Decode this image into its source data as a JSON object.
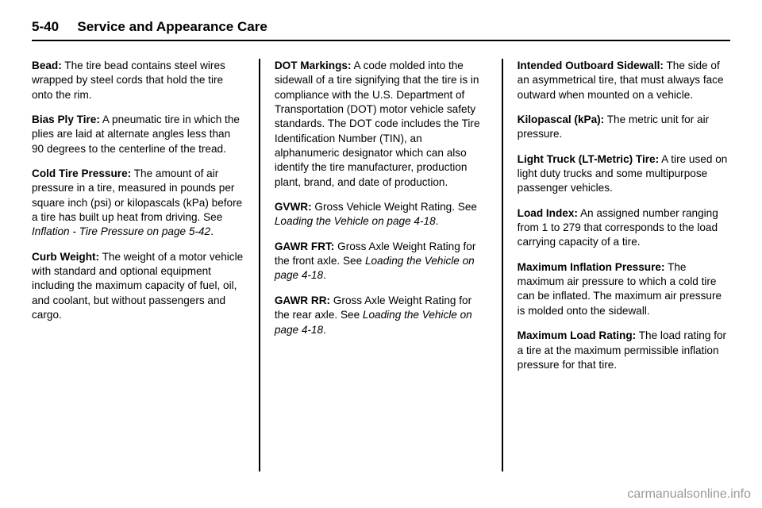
{
  "header": {
    "page_num": "5-40",
    "section": "Service and Appearance Care"
  },
  "col1": {
    "e1": {
      "term": "Bead:",
      "text": " The tire bead contains steel wires wrapped by steel cords that hold the tire onto the rim."
    },
    "e2": {
      "term": "Bias Ply Tire:",
      "text": " A pneumatic tire in which the plies are laid at alternate angles less than 90 degrees to the centerline of the tread."
    },
    "e3": {
      "term": "Cold Tire Pressure:",
      "text": " The amount of air pressure in a tire, measured in pounds per square inch (psi) or kilopascals (kPa) before a tire has built up heat from driving. See ",
      "ref": "Inflation - Tire Pressure on page 5-42",
      "after": "."
    },
    "e4": {
      "term": "Curb Weight:",
      "text": " The weight of a motor vehicle with standard and optional equipment including the maximum capacity of fuel, oil, and coolant, but without passengers and cargo."
    }
  },
  "col2": {
    "e1": {
      "term": "DOT Markings:",
      "text": " A code molded into the sidewall of a tire signifying that the tire is in compliance with the U.S. Department of Transportation (DOT) motor vehicle safety standards. The DOT code includes the Tire Identification Number (TIN), an alphanumeric designator which can also identify the tire manufacturer, production plant, brand, and date of production."
    },
    "e2": {
      "term": "GVWR:",
      "text": " Gross Vehicle Weight Rating. See ",
      "ref": "Loading the Vehicle on page 4-18",
      "after": "."
    },
    "e3": {
      "term": "GAWR FRT:",
      "text": " Gross Axle Weight Rating for the front axle. See ",
      "ref": "Loading the Vehicle on page 4-18",
      "after": "."
    },
    "e4": {
      "term": "GAWR RR:",
      "text": " Gross Axle Weight Rating for the rear axle. See ",
      "ref": "Loading the Vehicle on page 4-18",
      "after": "."
    }
  },
  "col3": {
    "e1": {
      "term": "Intended Outboard Sidewall:",
      "text": " The side of an asymmetrical tire, that must always face outward when mounted on a vehicle."
    },
    "e2": {
      "term": "Kilopascal (kPa):",
      "text": " The metric unit for air pressure."
    },
    "e3": {
      "term": "Light Truck (LT-Metric) Tire:",
      "text": " A tire used on light duty trucks and some multipurpose passenger vehicles."
    },
    "e4": {
      "term": "Load Index:",
      "text": " An assigned number ranging from 1 to 279 that corresponds to the load carrying capacity of a tire."
    },
    "e5": {
      "term": "Maximum Inflation Pressure:",
      "text": " The maximum air pressure to which a cold tire can be inflated. The maximum air pressure is molded onto the sidewall."
    },
    "e6": {
      "term": "Maximum Load Rating:",
      "text": " The load rating for a tire at the maximum permissible inflation pressure for that tire."
    }
  },
  "watermark": "carmanualsonline.info"
}
